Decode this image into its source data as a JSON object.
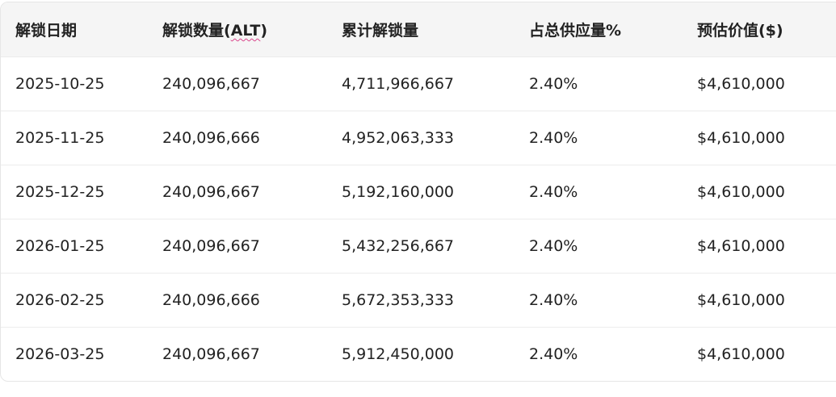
{
  "table": {
    "headers": {
      "date": "解锁日期",
      "amount_prefix": "解锁数量(",
      "amount_token": "ALT",
      "amount_suffix": ")",
      "cumulative": "累计解锁量",
      "supply_pct": "占总供应量%",
      "value": "预估价值($)"
    },
    "rows": [
      {
        "date": "2025-10-25",
        "amount": "240,096,667",
        "cumulative": "4,711,966,667",
        "pct": "2.40%",
        "value": "$4,610,000"
      },
      {
        "date": "2025-11-25",
        "amount": "240,096,666",
        "cumulative": "4,952,063,333",
        "pct": "2.40%",
        "value": "$4,610,000"
      },
      {
        "date": "2025-12-25",
        "amount": "240,096,667",
        "cumulative": "5,192,160,000",
        "pct": "2.40%",
        "value": "$4,610,000"
      },
      {
        "date": "2026-01-25",
        "amount": "240,096,667",
        "cumulative": "5,432,256,667",
        "pct": "2.40%",
        "value": "$4,610,000"
      },
      {
        "date": "2026-02-25",
        "amount": "240,096,666",
        "cumulative": "5,672,353,333",
        "pct": "2.40%",
        "value": "$4,610,000"
      },
      {
        "date": "2026-03-25",
        "amount": "240,096,667",
        "cumulative": "5,912,450,000",
        "pct": "2.40%",
        "value": "$4,610,000"
      }
    ]
  }
}
